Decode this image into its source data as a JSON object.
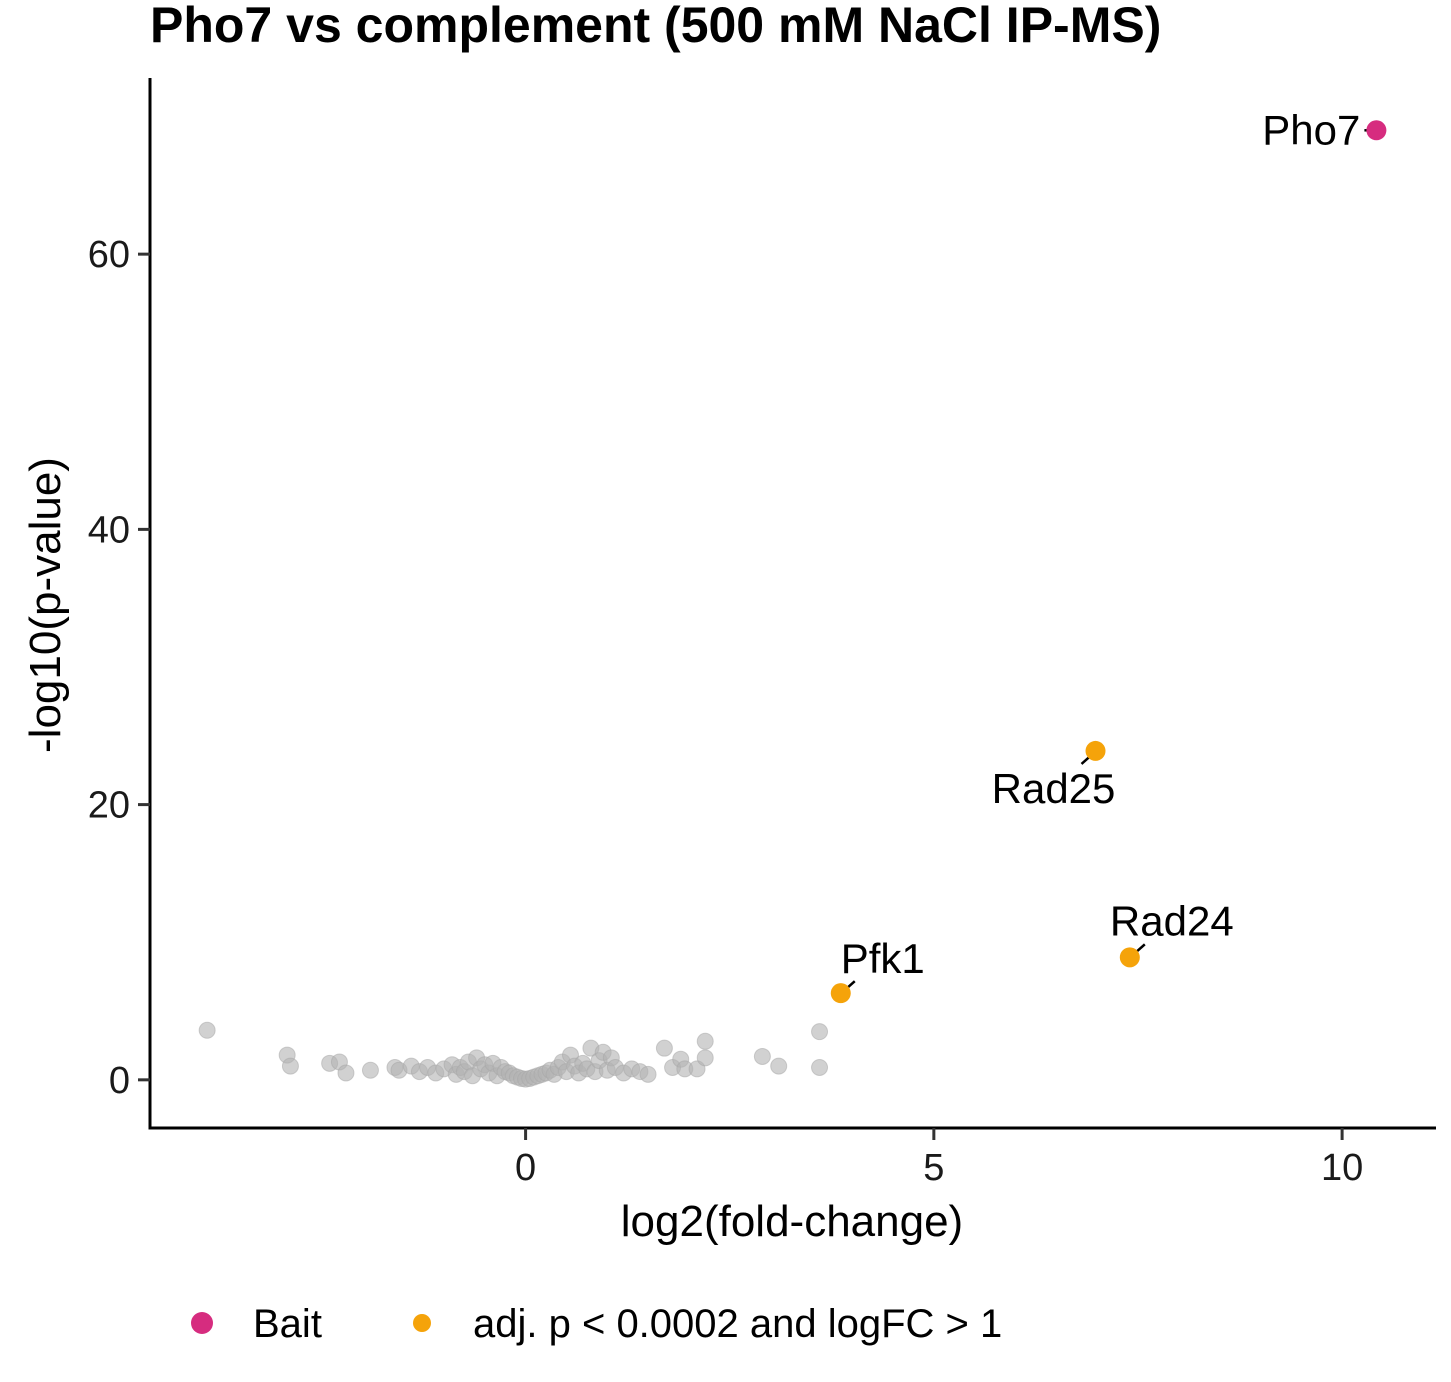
{
  "chart_data": {
    "type": "scatter",
    "title": "Pho7 vs complement (500 mM NaCl IP-MS)",
    "xlabel": "log2(fold-change)",
    "ylabel": "-log10(p-value)",
    "xlim": [
      -4.6,
      11.15
    ],
    "ylim": [
      -3.5,
      72.8
    ],
    "xticks": [
      0,
      5,
      10
    ],
    "yticks": [
      0,
      20,
      40,
      60
    ],
    "grid": false,
    "legend_position": "bottom",
    "colors": {
      "bait": "#d62c7f",
      "significant": "#f5a30a",
      "other": "#b3b3b3"
    },
    "series": [
      {
        "name": "Bait",
        "color": "#d62c7f",
        "points": [
          {
            "x": 10.42,
            "y": 69.0,
            "label": "Pho7"
          }
        ]
      },
      {
        "name": "adj. p < 0.0002 and logFC > 1",
        "color": "#f5a30a",
        "points": [
          {
            "x": 6.98,
            "y": 23.9,
            "label": "Rad25"
          },
          {
            "x": 7.4,
            "y": 8.9,
            "label": "Rad24"
          },
          {
            "x": 3.86,
            "y": 6.3,
            "label": "Pfk1"
          }
        ]
      },
      {
        "color": "#b3b3b3",
        "points": [
          {
            "x": -3.9,
            "y": 3.6
          },
          {
            "x": -2.92,
            "y": 1.8
          },
          {
            "x": -2.88,
            "y": 1.0
          },
          {
            "x": -2.4,
            "y": 1.2
          },
          {
            "x": -2.28,
            "y": 1.3
          },
          {
            "x": -2.2,
            "y": 0.5
          },
          {
            "x": -1.9,
            "y": 0.7
          },
          {
            "x": -1.6,
            "y": 0.9
          },
          {
            "x": -1.55,
            "y": 0.7
          },
          {
            "x": -1.4,
            "y": 1.0
          },
          {
            "x": -1.3,
            "y": 0.6
          },
          {
            "x": -1.2,
            "y": 0.9
          },
          {
            "x": -1.1,
            "y": 0.5
          },
          {
            "x": -1.0,
            "y": 0.8
          },
          {
            "x": -0.9,
            "y": 1.1
          },
          {
            "x": -0.85,
            "y": 0.4
          },
          {
            "x": -0.8,
            "y": 0.9
          },
          {
            "x": -0.75,
            "y": 0.6
          },
          {
            "x": -0.7,
            "y": 1.3
          },
          {
            "x": -0.65,
            "y": 0.3
          },
          {
            "x": -0.6,
            "y": 1.6
          },
          {
            "x": -0.55,
            "y": 0.8
          },
          {
            "x": -0.5,
            "y": 1.1
          },
          {
            "x": -0.45,
            "y": 0.5
          },
          {
            "x": -0.4,
            "y": 1.2
          },
          {
            "x": -0.35,
            "y": 0.3
          },
          {
            "x": -0.3,
            "y": 0.9
          },
          {
            "x": -0.25,
            "y": 0.6
          },
          {
            "x": -0.2,
            "y": 0.5
          },
          {
            "x": -0.15,
            "y": 0.3
          },
          {
            "x": -0.1,
            "y": 0.2
          },
          {
            "x": -0.05,
            "y": 0.1
          },
          {
            "x": 0.0,
            "y": 0.05
          },
          {
            "x": 0.05,
            "y": 0.1
          },
          {
            "x": 0.1,
            "y": 0.2
          },
          {
            "x": 0.15,
            "y": 0.3
          },
          {
            "x": 0.2,
            "y": 0.4
          },
          {
            "x": 0.25,
            "y": 0.5
          },
          {
            "x": 0.3,
            "y": 0.7
          },
          {
            "x": 0.35,
            "y": 0.4
          },
          {
            "x": 0.4,
            "y": 0.9
          },
          {
            "x": 0.45,
            "y": 1.3
          },
          {
            "x": 0.5,
            "y": 0.6
          },
          {
            "x": 0.55,
            "y": 1.8
          },
          {
            "x": 0.6,
            "y": 1.0
          },
          {
            "x": 0.65,
            "y": 0.5
          },
          {
            "x": 0.7,
            "y": 1.2
          },
          {
            "x": 0.75,
            "y": 0.8
          },
          {
            "x": 0.8,
            "y": 2.3
          },
          {
            "x": 0.85,
            "y": 0.6
          },
          {
            "x": 0.9,
            "y": 1.4
          },
          {
            "x": 0.95,
            "y": 2.0
          },
          {
            "x": 1.0,
            "y": 0.7
          },
          {
            "x": 1.05,
            "y": 1.6
          },
          {
            "x": 1.1,
            "y": 0.9
          },
          {
            "x": 1.2,
            "y": 0.5
          },
          {
            "x": 1.3,
            "y": 0.8
          },
          {
            "x": 1.4,
            "y": 0.6
          },
          {
            "x": 1.5,
            "y": 0.4
          },
          {
            "x": 1.7,
            "y": 2.3
          },
          {
            "x": 1.8,
            "y": 0.9
          },
          {
            "x": 1.9,
            "y": 1.5
          },
          {
            "x": 1.95,
            "y": 0.8
          },
          {
            "x": 2.1,
            "y": 0.8
          },
          {
            "x": 2.2,
            "y": 2.8
          },
          {
            "x": 2.2,
            "y": 1.6
          },
          {
            "x": 2.9,
            "y": 1.7
          },
          {
            "x": 3.1,
            "y": 1.0
          },
          {
            "x": 3.6,
            "y": 3.5
          },
          {
            "x": 3.6,
            "y": 0.9
          }
        ]
      }
    ]
  }
}
